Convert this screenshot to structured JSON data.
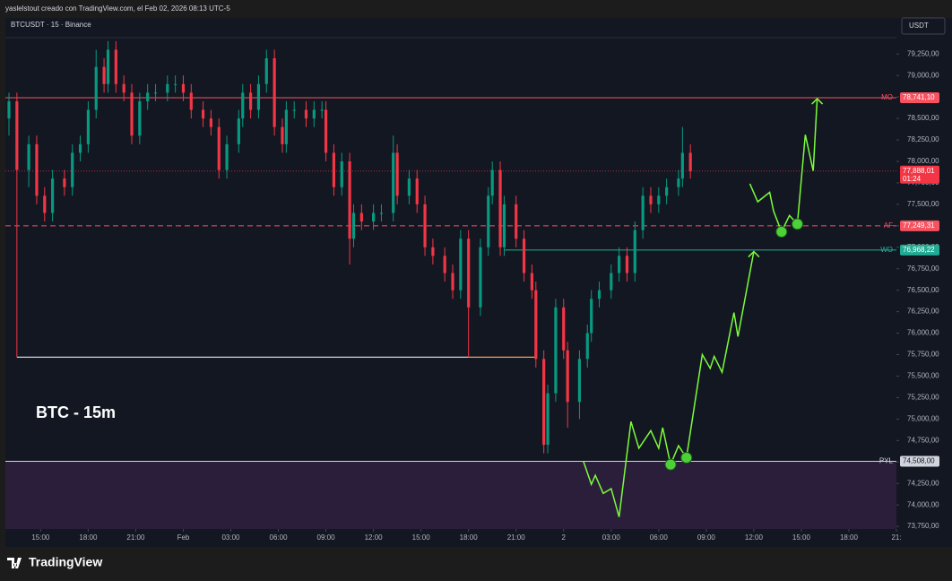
{
  "header": "yaslelstout creado con TradingView.com, el Feb 02, 2026 08:13 UTC-5",
  "chart_data": {
    "type": "candlestick",
    "title": "BTCUSDT · 15 · Binance",
    "annotation": "BTC - 15m",
    "currency": "USDT",
    "xlim": [
      0,
      224
    ],
    "ylim": [
      73720,
      79430
    ],
    "xticks": [
      {
        "value": 8,
        "label": "15:00"
      },
      {
        "value": 20,
        "label": "18:00"
      },
      {
        "value": 32,
        "label": "21:00"
      },
      {
        "value": 44,
        "label": "Feb"
      },
      {
        "value": 56,
        "label": "03:00"
      },
      {
        "value": 68,
        "label": "06:00"
      },
      {
        "value": 80,
        "label": "09:00"
      },
      {
        "value": 92,
        "label": "12:00"
      },
      {
        "value": 104,
        "label": "15:00"
      },
      {
        "value": 116,
        "label": "18:00"
      },
      {
        "value": 128,
        "label": "21:00"
      },
      {
        "value": 140,
        "label": "2"
      },
      {
        "value": 152,
        "label": "03:00"
      },
      {
        "value": 164,
        "label": "06:00"
      },
      {
        "value": 176,
        "label": "09:00"
      },
      {
        "value": 188,
        "label": "12:00"
      },
      {
        "value": 200,
        "label": "15:00"
      },
      {
        "value": 212,
        "label": "18:00"
      },
      {
        "value": 224,
        "label": "21:"
      }
    ],
    "yticks": [
      {
        "value": 79250,
        "label": "79,250,00"
      },
      {
        "value": 79000,
        "label": "79,000,00"
      },
      {
        "value": 78750,
        "label": "78,750,00"
      },
      {
        "value": 78500,
        "label": "78,500,00"
      },
      {
        "value": 78250,
        "label": "78,250,00"
      },
      {
        "value": 78000,
        "label": "78,000,00"
      },
      {
        "value": 77750,
        "label": "77,750,00"
      },
      {
        "value": 77500,
        "label": "77,500,00"
      },
      {
        "value": 77250,
        "label": "77,250,00"
      },
      {
        "value": 77000,
        "label": "77,000,00"
      },
      {
        "value": 76750,
        "label": "76,750,00"
      },
      {
        "value": 76500,
        "label": "76,500,00"
      },
      {
        "value": 76250,
        "label": "76,250,00"
      },
      {
        "value": 76000,
        "label": "76,000,00"
      },
      {
        "value": 75750,
        "label": "75,750,00"
      },
      {
        "value": 75500,
        "label": "75,500,00"
      },
      {
        "value": 75250,
        "label": "75,250,00"
      },
      {
        "value": 75000,
        "label": "75,000,00"
      },
      {
        "value": 74750,
        "label": "74,750,00"
      },
      {
        "value": 74500,
        "label": "74,500,00"
      },
      {
        "value": 74250,
        "label": "74,250,00"
      },
      {
        "value": 74000,
        "label": "74,000,00"
      },
      {
        "value": 73750,
        "label": "73,750,00"
      }
    ],
    "up_color": "#089981",
    "down_color": "#f23645",
    "candles": [
      {
        "x": 0,
        "o": 78500,
        "h": 78800,
        "l": 78300,
        "c": 78700
      },
      {
        "x": 2,
        "o": 78700,
        "h": 78800,
        "l": 75720,
        "c": 77900
      },
      {
        "x": 5,
        "o": 77900,
        "h": 78300,
        "l": 77700,
        "c": 78200
      },
      {
        "x": 7,
        "o": 78200,
        "h": 78300,
        "l": 77500,
        "c": 77600
      },
      {
        "x": 9,
        "o": 77600,
        "h": 77700,
        "l": 77300,
        "c": 77400
      },
      {
        "x": 11,
        "o": 77400,
        "h": 77900,
        "l": 77300,
        "c": 77800
      },
      {
        "x": 14,
        "o": 77800,
        "h": 77900,
        "l": 77600,
        "c": 77700
      },
      {
        "x": 16,
        "o": 77700,
        "h": 78200,
        "l": 77600,
        "c": 78100
      },
      {
        "x": 18,
        "o": 78100,
        "h": 78300,
        "l": 78000,
        "c": 78200
      },
      {
        "x": 20,
        "o": 78200,
        "h": 78700,
        "l": 78100,
        "c": 78600
      },
      {
        "x": 22,
        "o": 78600,
        "h": 79300,
        "l": 78500,
        "c": 79100
      },
      {
        "x": 24,
        "o": 79100,
        "h": 79200,
        "l": 78800,
        "c": 78900
      },
      {
        "x": 25,
        "o": 78900,
        "h": 79400,
        "l": 78800,
        "c": 79300
      },
      {
        "x": 27,
        "o": 79300,
        "h": 79400,
        "l": 78800,
        "c": 78900
      },
      {
        "x": 29,
        "o": 78900,
        "h": 79000,
        "l": 78700,
        "c": 78800
      },
      {
        "x": 31,
        "o": 78800,
        "h": 78900,
        "l": 78200,
        "c": 78300
      },
      {
        "x": 33,
        "o": 78300,
        "h": 78800,
        "l": 78200,
        "c": 78700
      },
      {
        "x": 35,
        "o": 78700,
        "h": 78900,
        "l": 78600,
        "c": 78800
      },
      {
        "x": 37,
        "o": 78800,
        "h": 78900,
        "l": 78700,
        "c": 78800
      },
      {
        "x": 40,
        "o": 78800,
        "h": 79000,
        "l": 78700,
        "c": 78900
      },
      {
        "x": 42,
        "o": 78900,
        "h": 79000,
        "l": 78800,
        "c": 78900
      },
      {
        "x": 44,
        "o": 78900,
        "h": 79000,
        "l": 78700,
        "c": 78800
      },
      {
        "x": 46,
        "o": 78800,
        "h": 78900,
        "l": 78500,
        "c": 78600
      },
      {
        "x": 49,
        "o": 78600,
        "h": 78700,
        "l": 78400,
        "c": 78500
      },
      {
        "x": 51,
        "o": 78500,
        "h": 78600,
        "l": 78300,
        "c": 78400
      },
      {
        "x": 53,
        "o": 78400,
        "h": 78500,
        "l": 77800,
        "c": 77900
      },
      {
        "x": 55,
        "o": 77900,
        "h": 78300,
        "l": 77800,
        "c": 78200
      },
      {
        "x": 58,
        "o": 78200,
        "h": 78600,
        "l": 78100,
        "c": 78500
      },
      {
        "x": 59,
        "o": 78500,
        "h": 78900,
        "l": 78400,
        "c": 78800
      },
      {
        "x": 61,
        "o": 78800,
        "h": 78900,
        "l": 78500,
        "c": 78600
      },
      {
        "x": 63,
        "o": 78600,
        "h": 79000,
        "l": 78500,
        "c": 78900
      },
      {
        "x": 65,
        "o": 78900,
        "h": 79300,
        "l": 78800,
        "c": 79200
      },
      {
        "x": 67,
        "o": 79200,
        "h": 79300,
        "l": 78300,
        "c": 78400
      },
      {
        "x": 69,
        "o": 78400,
        "h": 78500,
        "l": 78100,
        "c": 78200
      },
      {
        "x": 70,
        "o": 78200,
        "h": 78700,
        "l": 78100,
        "c": 78600
      },
      {
        "x": 72,
        "o": 78600,
        "h": 78700,
        "l": 78500,
        "c": 78600
      },
      {
        "x": 75,
        "o": 78600,
        "h": 78700,
        "l": 78400,
        "c": 78500
      },
      {
        "x": 77,
        "o": 78500,
        "h": 78700,
        "l": 78400,
        "c": 78600
      },
      {
        "x": 79,
        "o": 78600,
        "h": 78700,
        "l": 78500,
        "c": 78600
      },
      {
        "x": 80,
        "o": 78600,
        "h": 78700,
        "l": 78000,
        "c": 78100
      },
      {
        "x": 82,
        "o": 78100,
        "h": 78200,
        "l": 77600,
        "c": 77700
      },
      {
        "x": 84,
        "o": 77700,
        "h": 78100,
        "l": 77600,
        "c": 78000
      },
      {
        "x": 86,
        "o": 78000,
        "h": 78100,
        "l": 76800,
        "c": 77100
      },
      {
        "x": 87,
        "o": 77100,
        "h": 77500,
        "l": 77000,
        "c": 77400
      },
      {
        "x": 89,
        "o": 77400,
        "h": 77500,
        "l": 77200,
        "c": 77300
      },
      {
        "x": 92,
        "o": 77300,
        "h": 77500,
        "l": 77200,
        "c": 77400
      },
      {
        "x": 94,
        "o": 77400,
        "h": 77500,
        "l": 77300,
        "c": 77400
      },
      {
        "x": 97,
        "o": 77400,
        "h": 78300,
        "l": 77300,
        "c": 78100
      },
      {
        "x": 98,
        "o": 78100,
        "h": 78200,
        "l": 77500,
        "c": 77600
      },
      {
        "x": 101,
        "o": 77600,
        "h": 77900,
        "l": 77500,
        "c": 77800
      },
      {
        "x": 103,
        "o": 77800,
        "h": 77900,
        "l": 77400,
        "c": 77500
      },
      {
        "x": 105,
        "o": 77500,
        "h": 77600,
        "l": 76900,
        "c": 77000
      },
      {
        "x": 107,
        "o": 77000,
        "h": 77100,
        "l": 76800,
        "c": 76900
      },
      {
        "x": 110,
        "o": 76900,
        "h": 77000,
        "l": 76600,
        "c": 76700
      },
      {
        "x": 112,
        "o": 76700,
        "h": 76800,
        "l": 76400,
        "c": 76500
      },
      {
        "x": 114,
        "o": 76500,
        "h": 77200,
        "l": 76400,
        "c": 77100
      },
      {
        "x": 116,
        "o": 77100,
        "h": 77200,
        "l": 75720,
        "c": 76300
      },
      {
        "x": 119,
        "o": 76300,
        "h": 77100,
        "l": 76200,
        "c": 77000
      },
      {
        "x": 121,
        "o": 77000,
        "h": 77700,
        "l": 76900,
        "c": 77600
      },
      {
        "x": 122,
        "o": 77600,
        "h": 78000,
        "l": 77500,
        "c": 77900
      },
      {
        "x": 124,
        "o": 77900,
        "h": 78000,
        "l": 76900,
        "c": 77000
      },
      {
        "x": 125,
        "o": 77000,
        "h": 77600,
        "l": 76900,
        "c": 77500
      },
      {
        "x": 128,
        "o": 77500,
        "h": 77600,
        "l": 77000,
        "c": 77100
      },
      {
        "x": 130,
        "o": 77100,
        "h": 77200,
        "l": 76600,
        "c": 76700
      },
      {
        "x": 132,
        "o": 76700,
        "h": 76800,
        "l": 76400,
        "c": 76500
      },
      {
        "x": 133,
        "o": 76500,
        "h": 76600,
        "l": 75600,
        "c": 75700
      },
      {
        "x": 135,
        "o": 75700,
        "h": 75800,
        "l": 74600,
        "c": 74700
      },
      {
        "x": 136,
        "o": 74700,
        "h": 75400,
        "l": 74600,
        "c": 75300
      },
      {
        "x": 138,
        "o": 75300,
        "h": 76400,
        "l": 75200,
        "c": 76300
      },
      {
        "x": 140,
        "o": 76300,
        "h": 76400,
        "l": 75700,
        "c": 75800
      },
      {
        "x": 141,
        "o": 75800,
        "h": 75900,
        "l": 74900,
        "c": 75200
      },
      {
        "x": 144,
        "o": 75200,
        "h": 75800,
        "l": 75000,
        "c": 75700
      },
      {
        "x": 146,
        "o": 75700,
        "h": 76100,
        "l": 75600,
        "c": 76000
      },
      {
        "x": 147,
        "o": 76000,
        "h": 76500,
        "l": 75900,
        "c": 76400
      },
      {
        "x": 149,
        "o": 76400,
        "h": 76600,
        "l": 76300,
        "c": 76500
      },
      {
        "x": 152,
        "o": 76500,
        "h": 76800,
        "l": 76400,
        "c": 76700
      },
      {
        "x": 154,
        "o": 76700,
        "h": 77000,
        "l": 76600,
        "c": 76900
      },
      {
        "x": 156,
        "o": 76900,
        "h": 77000,
        "l": 76600,
        "c": 76700
      },
      {
        "x": 158,
        "o": 76700,
        "h": 77300,
        "l": 76600,
        "c": 77200
      },
      {
        "x": 160,
        "o": 77200,
        "h": 77700,
        "l": 77100,
        "c": 77600
      },
      {
        "x": 162,
        "o": 77600,
        "h": 77700,
        "l": 77400,
        "c": 77500
      },
      {
        "x": 164,
        "o": 77500,
        "h": 77700,
        "l": 77400,
        "c": 77600
      },
      {
        "x": 166,
        "o": 77600,
        "h": 77800,
        "l": 77500,
        "c": 77700
      },
      {
        "x": 169,
        "o": 77700,
        "h": 77900,
        "l": 77600,
        "c": 77800
      },
      {
        "x": 170,
        "o": 77800,
        "h": 78400,
        "l": 77700,
        "c": 78100
      },
      {
        "x": 172,
        "o": 78100,
        "h": 78200,
        "l": 77800,
        "c": 77888.01
      }
    ],
    "price_lines": [
      {
        "name": "MO",
        "value": 78741.1,
        "value_label": "78,741,10",
        "color": "#f7525f",
        "style": "solid"
      },
      {
        "name": "AF",
        "value": 77249.31,
        "value_label": "77,249,31",
        "color": "#f7525f",
        "style": "dashed"
      },
      {
        "name": "WO",
        "value": 76968.22,
        "value_label": "76,968,22",
        "color": "#22ab94",
        "style": "solid",
        "from": 125
      },
      {
        "name": "PYL",
        "value": 74508,
        "value_label": "74,508,00",
        "color": "#d1d4dc",
        "style": "solid"
      }
    ],
    "levels": [
      {
        "value": 75720,
        "from": 2,
        "to": 116,
        "color": "#d1d4dc"
      },
      {
        "value": 75720,
        "from": 116,
        "to": 133,
        "color": "#f0a050"
      }
    ],
    "last_price": {
      "value": 77888.01,
      "value_label": "77,888,01",
      "countdown": "01:24"
    },
    "projections": [
      {
        "color": "#7cfc3a",
        "x": [
          145,
          147,
          148,
          150,
          152,
          154,
          157,
          159,
          162,
          164,
          165,
          167,
          169,
          171,
          175,
          177,
          178,
          180,
          183,
          184,
          188
        ],
        "y": [
          74508,
          74240,
          74345,
          74135,
          74190,
          73860,
          74970,
          74660,
          74865,
          74660,
          74900,
          74470,
          74690,
          74550,
          75750,
          75590,
          75730,
          75545,
          76240,
          75960,
          76950
        ]
      },
      {
        "color": "#7cfc3a",
        "x": [
          187,
          189,
          192,
          193,
          195,
          197,
          199,
          201,
          203,
          204
        ],
        "y": [
          77740,
          77530,
          77640,
          77420,
          77180,
          77370,
          77270,
          78310,
          77890,
          78730
        ]
      }
    ],
    "markers": {
      "x": [
        167,
        171,
        195,
        199
      ],
      "y": [
        74470,
        74550,
        77180,
        77270
      ],
      "color": "#4cd137"
    }
  },
  "footer": "TradingView"
}
